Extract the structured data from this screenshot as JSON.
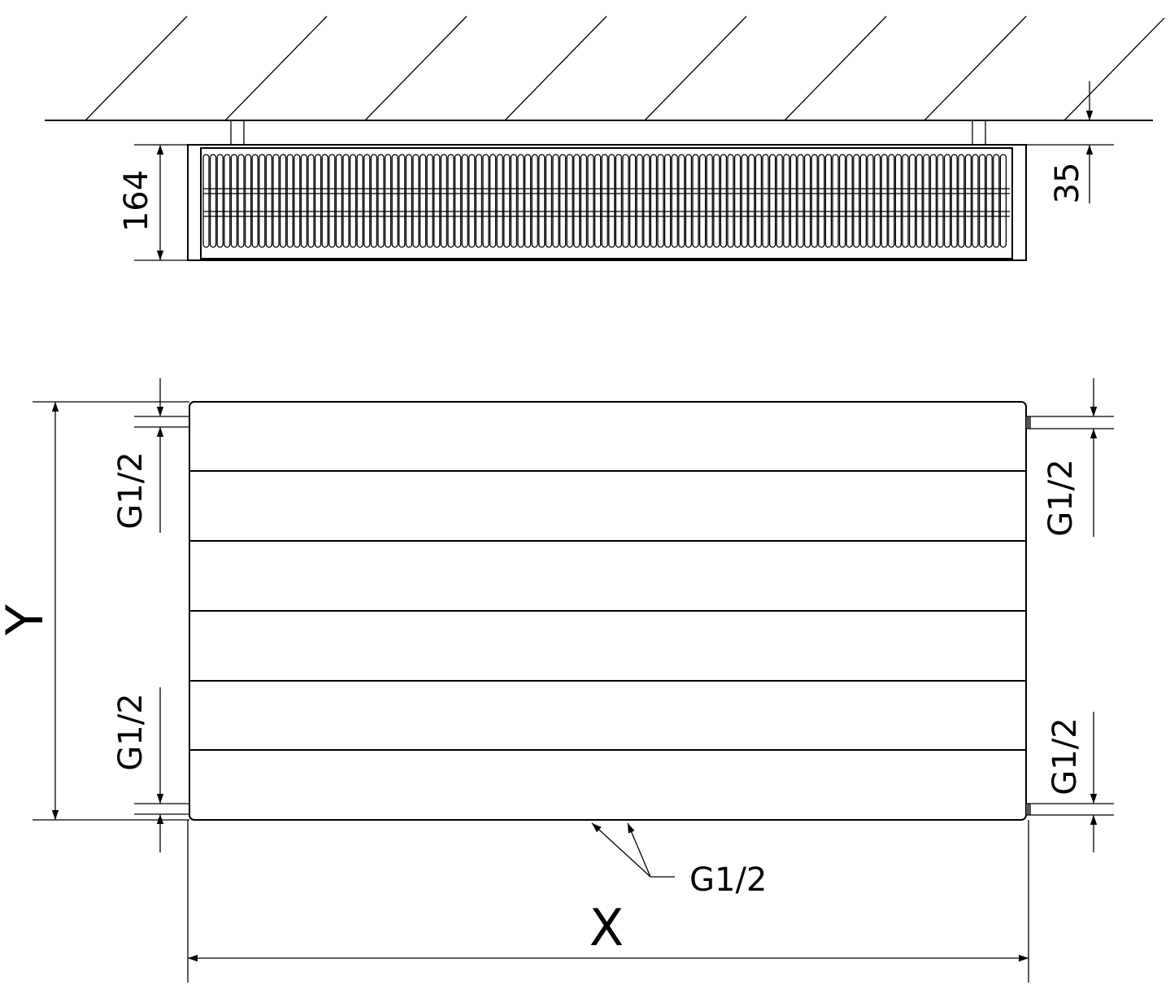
{
  "top_view": {
    "height_label": "164",
    "wall_gap_label": "35"
  },
  "front_view": {
    "height_label": "Y",
    "width_label": "X",
    "left_top_connection": "G1/2",
    "left_bottom_connection": "G1/2",
    "right_top_connection": "G1/2",
    "right_bottom_connection": "G1/2",
    "bottom_connection": "G1/2"
  }
}
